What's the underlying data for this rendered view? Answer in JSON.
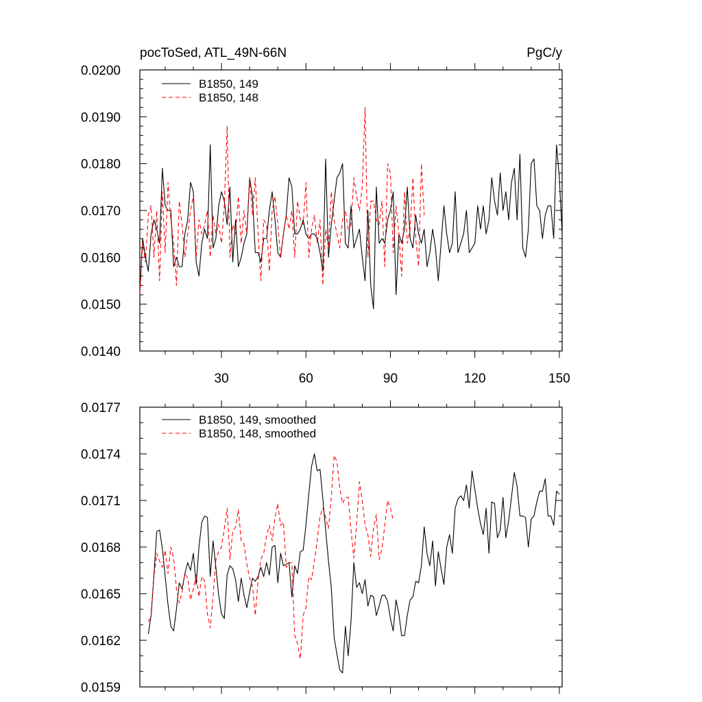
{
  "figure": {
    "title_left": "pocToSed, ATL_49N-66N",
    "title_right": "PgC/y"
  },
  "chart_data": [
    {
      "type": "line",
      "title": "pocToSed, ATL_49N-66N",
      "units": "PgC/y",
      "xlim": [
        1,
        151
      ],
      "xticks": [
        30,
        60,
        90,
        120,
        150
      ],
      "xtick_labels": [
        "30",
        "60",
        "90",
        "120",
        "150"
      ],
      "ylim": [
        0.014,
        0.02
      ],
      "yticks": [
        0.014,
        0.015,
        0.016,
        0.017,
        0.018,
        0.019,
        0.02
      ],
      "ytick_labels": [
        "0.0140",
        "0.0150",
        "0.0160",
        "0.0170",
        "0.0180",
        "0.0190",
        "0.0200"
      ],
      "legend_position": "top-left",
      "grid": false,
      "series": [
        {
          "name": "B1850, 149",
          "color": "#000000",
          "dash": "solid",
          "x_start": 1,
          "values": [
            0.0153,
            0.0164,
            0.016,
            0.0157,
            0.0165,
            0.0168,
            0.0166,
            0.0163,
            0.0179,
            0.0171,
            0.017,
            0.017,
            0.0158,
            0.016,
            0.0158,
            0.0158,
            0.0165,
            0.0168,
            0.0176,
            0.0174,
            0.0159,
            0.0156,
            0.0163,
            0.0166,
            0.0164,
            0.0184,
            0.0162,
            0.0164,
            0.0171,
            0.0174,
            0.0172,
            0.0167,
            0.0175,
            0.0159,
            0.0168,
            0.0158,
            0.016,
            0.0163,
            0.0165,
            0.0177,
            0.0173,
            0.0161,
            0.0161,
            0.0159,
            0.0164,
            0.0164,
            0.017,
            0.0174,
            0.0168,
            0.0161,
            0.016,
            0.0165,
            0.0169,
            0.0177,
            0.0175,
            0.0165,
            0.0165,
            0.0166,
            0.0168,
            0.0165,
            0.0164,
            0.0165,
            0.0165,
            0.0164,
            0.0161,
            0.0157,
            0.0181,
            0.016,
            0.0167,
            0.0172,
            0.0177,
            0.0178,
            0.018,
            0.0163,
            0.0162,
            0.0171,
            0.0162,
            0.0164,
            0.0166,
            0.016,
            0.0155,
            0.017,
            0.0154,
            0.0149,
            0.0175,
            0.0163,
            0.0164,
            0.0163,
            0.0168,
            0.017,
            0.0174,
            0.0152,
            0.0165,
            0.0163,
            0.0166,
            0.0175,
            0.0164,
            0.0162,
            0.0169,
            0.0165,
            0.0163,
            0.0166,
            0.0158,
            0.0161,
            0.0166,
            0.0162,
            0.0155,
            0.0163,
            0.0171,
            0.0165,
            0.0161,
            0.0163,
            0.0174,
            0.0161,
            0.0163,
            0.0165,
            0.017,
            0.0161,
            0.0162,
            0.0163,
            0.0171,
            0.0166,
            0.0171,
            0.0165,
            0.0168,
            0.0177,
            0.0172,
            0.0169,
            0.0178,
            0.017,
            0.0174,
            0.0168,
            0.0176,
            0.0179,
            0.0168,
            0.0182,
            0.0162,
            0.016,
            0.0166,
            0.018,
            0.0181,
            0.0171,
            0.017,
            0.0164,
            0.0169,
            0.0171,
            0.0171,
            0.0164,
            0.0184,
            0.0177,
            0.0165
          ]
        },
        {
          "name": "B1850, 148",
          "color": "#ff0000",
          "dash": "dashed",
          "x_start": 1,
          "values": [
            0.0152,
            0.0163,
            0.0159,
            0.0169,
            0.0171,
            0.016,
            0.017,
            0.0155,
            0.0174,
            0.0161,
            0.0176,
            0.0168,
            0.0163,
            0.0154,
            0.0172,
            0.0167,
            0.016,
            0.0165,
            0.017,
            0.0173,
            0.016,
            0.0168,
            0.0165,
            0.0167,
            0.017,
            0.016,
            0.0169,
            0.0165,
            0.0167,
            0.0163,
            0.0171,
            0.0188,
            0.016,
            0.0167,
            0.0165,
            0.0173,
            0.0163,
            0.017,
            0.0165,
            0.0177,
            0.0169,
            0.0177,
            0.0165,
            0.0155,
            0.0168,
            0.0167,
            0.0157,
            0.017,
            0.0173,
            0.0167,
            0.016,
            0.0165,
            0.0169,
            0.0166,
            0.017,
            0.016,
            0.0172,
            0.0168,
            0.0167,
            0.0176,
            0.016,
            0.0166,
            0.0169,
            0.0163,
            0.0168,
            0.0154,
            0.0166,
            0.0162,
            0.0174,
            0.0168,
            0.0165,
            0.0162,
            0.0168,
            0.017,
            0.0166,
            0.0167,
            0.0177,
            0.0173,
            0.017,
            0.0175,
            0.0192,
            0.016,
            0.0172,
            0.0172,
            0.0168,
            0.0167,
            0.0172,
            0.0158,
            0.018,
            0.0178,
            0.0161,
            0.0171,
            0.0165,
            0.0156,
            0.0174,
            0.0163,
            0.0166,
            0.0177,
            0.0164,
            0.0158,
            0.018,
            0.0169
          ]
        }
      ]
    },
    {
      "type": "line",
      "xlim": [
        1,
        151
      ],
      "xticks": [
        30,
        60,
        90,
        120,
        150
      ],
      "ylim": [
        0.0159,
        0.0177
      ],
      "yticks": [
        0.0159,
        0.0162,
        0.0165,
        0.0168,
        0.0171,
        0.0174,
        0.0177
      ],
      "ytick_labels": [
        "0.0159",
        "0.0162",
        "0.0165",
        "0.0168",
        "0.0171",
        "0.0174",
        "0.0177"
      ],
      "legend_position": "top-left",
      "grid": false,
      "series": [
        {
          "name": "B1850, 149, smoothed",
          "color": "#000000",
          "dash": "solid",
          "x_start": 4,
          "values": [
            0.01624,
            0.01636,
            0.01662,
            0.0169,
            0.01691,
            0.01679,
            0.01661,
            0.01643,
            0.01629,
            0.01626,
            0.0164,
            0.01657,
            0.01653,
            0.01663,
            0.0167,
            0.01665,
            0.01676,
            0.01656,
            0.0168,
            0.01696,
            0.017,
            0.01699,
            0.01661,
            0.01684,
            0.01667,
            0.01649,
            0.01637,
            0.01634,
            0.01662,
            0.01668,
            0.01666,
            0.01659,
            0.01645,
            0.0166,
            0.01649,
            0.01641,
            0.01651,
            0.0166,
            0.01658,
            0.01661,
            0.01667,
            0.01661,
            0.0167,
            0.01662,
            0.0168,
            0.01681,
            0.01657,
            0.01676,
            0.01668,
            0.01669,
            0.0167,
            0.01648,
            0.01668,
            0.01663,
            0.01677,
            0.01678,
            0.01694,
            0.01714,
            0.01732,
            0.0174,
            0.01729,
            0.0173,
            0.01711,
            0.01691,
            0.01671,
            0.01654,
            0.01622,
            0.01611,
            0.01601,
            0.01599,
            0.01629,
            0.0161,
            0.01632,
            0.0167,
            0.01654,
            0.01657,
            0.0165,
            0.01659,
            0.01642,
            0.01649,
            0.01648,
            0.01636,
            0.01642,
            0.01649,
            0.01649,
            0.01645,
            0.01634,
            0.01626,
            0.01646,
            0.01637,
            0.01623,
            0.01623,
            0.01636,
            0.01646,
            0.01648,
            0.01658,
            0.01657,
            0.01668,
            0.01693,
            0.01676,
            0.01668,
            0.01684,
            0.01655,
            0.01677,
            0.01666,
            0.01656,
            0.0168,
            0.01688,
            0.01676,
            0.01705,
            0.01711,
            0.01713,
            0.0171,
            0.0172,
            0.01705,
            0.01729,
            0.01717,
            0.01705,
            0.01695,
            0.01688,
            0.01705,
            0.01676,
            0.01709,
            0.01708,
            0.01686,
            0.01691,
            0.01712,
            0.01686,
            0.01697,
            0.01712,
            0.01728,
            0.01719,
            0.017,
            0.017,
            0.01699,
            0.0168,
            0.01698,
            0.017,
            0.01709,
            0.01716,
            0.01716,
            0.01724,
            0.017,
            0.017,
            0.01694,
            0.01716,
            0.01714
          ]
        },
        {
          "name": "B1850, 148, smoothed",
          "color": "#ff0000",
          "dash": "dashed",
          "x_start": 4,
          "values": [
            0.01632,
            0.01635,
            0.01661,
            0.01676,
            0.01671,
            0.01667,
            0.01678,
            0.01663,
            0.0168,
            0.01673,
            0.01653,
            0.01644,
            0.01651,
            0.01663,
            0.0166,
            0.01646,
            0.01653,
            0.01662,
            0.01648,
            0.01661,
            0.01658,
            0.01637,
            0.01628,
            0.01648,
            0.01672,
            0.01677,
            0.0168,
            0.01692,
            0.01705,
            0.01672,
            0.0169,
            0.01693,
            0.01704,
            0.01684,
            0.01682,
            0.01669,
            0.0166,
            0.01655,
            0.01636,
            0.01659,
            0.01672,
            0.01676,
            0.01687,
            0.01694,
            0.01684,
            0.01699,
            0.01708,
            0.01694,
            0.01696,
            0.01667,
            0.0167,
            0.0167,
            0.01623,
            0.01618,
            0.01608,
            0.01636,
            0.01641,
            0.01661,
            0.01659,
            0.01671,
            0.01684,
            0.017,
            0.01705,
            0.01699,
            0.01692,
            0.01712,
            0.01739,
            0.01735,
            0.01718,
            0.01708,
            0.01712,
            0.01712,
            0.01691,
            0.01673,
            0.01695,
            0.01722,
            0.0171,
            0.01694,
            0.01688,
            0.01674,
            0.01692,
            0.01701,
            0.01672,
            0.01679,
            0.01694,
            0.0171,
            0.01705,
            0.01697
          ]
        }
      ]
    }
  ]
}
